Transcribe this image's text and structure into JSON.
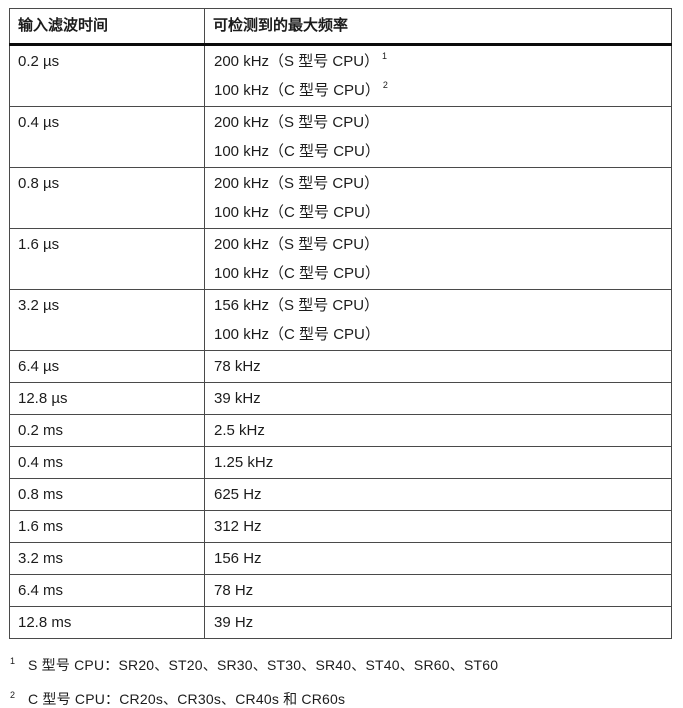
{
  "table": {
    "headers": [
      "输入滤波时间",
      "可检测到的最大频率"
    ],
    "rows": [
      {
        "time": "0.2 µs",
        "lines": [
          {
            "text": "200 kHz（S 型号 CPU）",
            "sup": "1"
          },
          {
            "text": "100 kHz（C 型号 CPU）",
            "sup": "2"
          }
        ]
      },
      {
        "time": "0.4 µs",
        "lines": [
          {
            "text": "200 kHz（S 型号 CPU）"
          },
          {
            "text": "100 kHz（C 型号 CPU）"
          }
        ]
      },
      {
        "time": "0.8 µs",
        "lines": [
          {
            "text": "200 kHz（S 型号 CPU）"
          },
          {
            "text": "100 kHz（C 型号 CPU）"
          }
        ]
      },
      {
        "time": "1.6 µs",
        "lines": [
          {
            "text": "200 kHz（S 型号 CPU）"
          },
          {
            "text": "100 kHz（C 型号 CPU）"
          }
        ]
      },
      {
        "time": "3.2 µs",
        "lines": [
          {
            "text": "156 kHz（S 型号 CPU）"
          },
          {
            "text": "100 kHz（C 型号 CPU）"
          }
        ]
      },
      {
        "time": "6.4 µs",
        "lines": [
          {
            "text": "78 kHz"
          }
        ]
      },
      {
        "time": "12.8 µs",
        "lines": [
          {
            "text": "39 kHz"
          }
        ]
      },
      {
        "time": "0.2 ms",
        "lines": [
          {
            "text": "2.5 kHz"
          }
        ]
      },
      {
        "time": "0.4 ms",
        "lines": [
          {
            "text": "1.25 kHz"
          }
        ]
      },
      {
        "time": "0.8 ms",
        "lines": [
          {
            "text": "625 Hz"
          }
        ]
      },
      {
        "time": "1.6 ms",
        "lines": [
          {
            "text": "312 Hz"
          }
        ]
      },
      {
        "time": "3.2 ms",
        "lines": [
          {
            "text": "156 Hz"
          }
        ]
      },
      {
        "time": "6.4 ms",
        "lines": [
          {
            "text": "78 Hz"
          }
        ]
      },
      {
        "time": "12.8 ms",
        "lines": [
          {
            "text": "39 Hz"
          }
        ]
      }
    ]
  },
  "footnotes": [
    {
      "marker": "1",
      "text": "S 型号 CPU：SR20、ST20、SR30、ST30、SR40、ST40、SR60、ST60"
    },
    {
      "marker": "2",
      "text": "C 型号 CPU：CR20s、CR30s、CR40s 和 CR60s"
    }
  ],
  "colors": {
    "text": "#1c1c1c",
    "border_thin": "#4a4a4a",
    "border_header": "#0b0b0b",
    "background": "#ffffff"
  }
}
